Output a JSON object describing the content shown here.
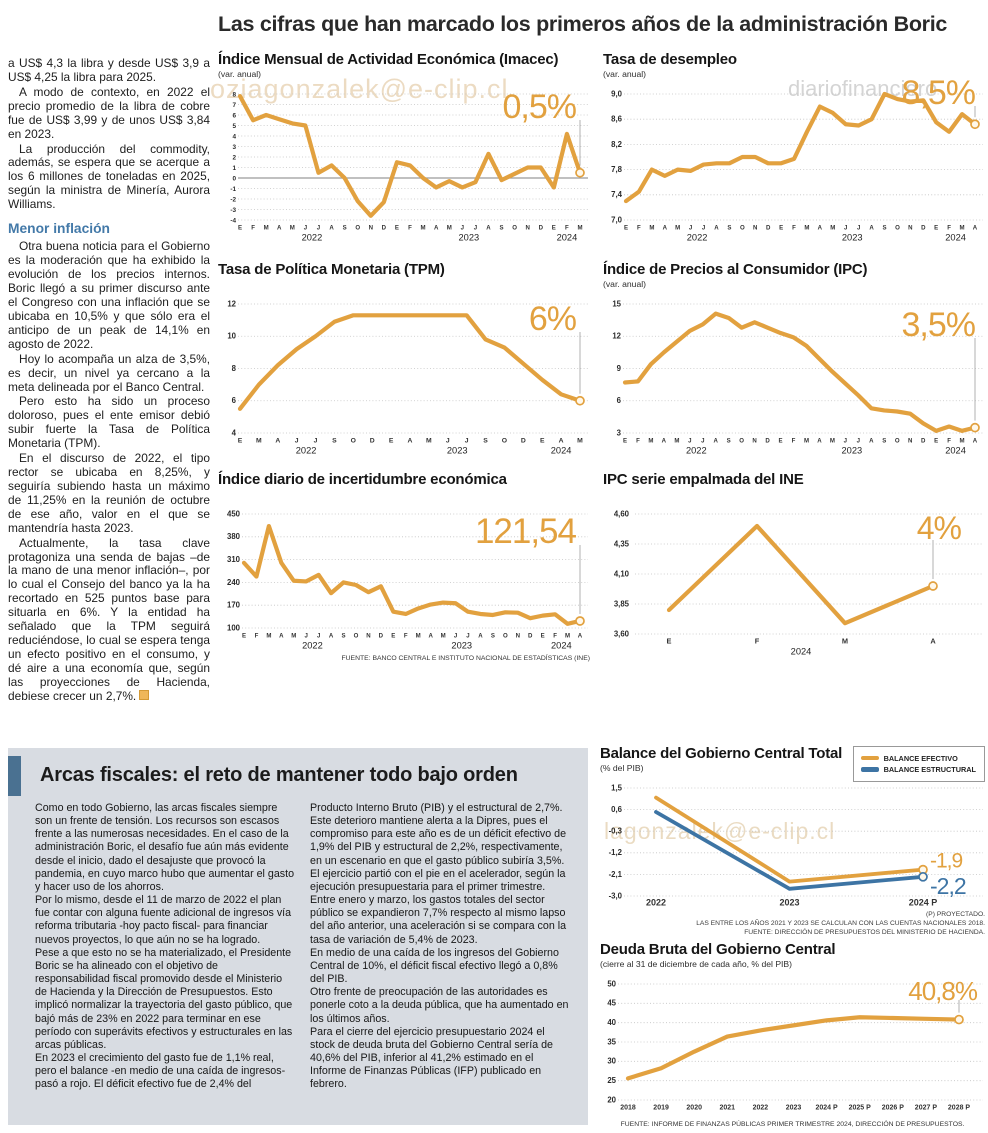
{
  "page": {
    "main_title": "Las cifras que han marcado los primeros años de la administración Boric"
  },
  "watermarks": [
    "oziagonzalek@e-clip.cl",
    "diariofinanciero",
    "ero#agonzalek@e-clip.cl",
    "lagonzalek@e-clip.cl"
  ],
  "colors": {
    "orange": "#E2A13F",
    "blue": "#3D74A4",
    "grid": "#C4C4C4",
    "zero_line": "#9A9A9A",
    "connector": "#AAAAAA",
    "subhead_blue": "#4379A8",
    "fiscal_bg": "#D8DCE2",
    "accent_bar": "#4A7191"
  },
  "left_article": {
    "paragraphs": [
      "a US$ 4,3 la libra y desde US$ 3,9 a US$ 4,25 la libra para 2025.",
      "A modo de contexto, en 2022 el precio promedio de la libra de cobre fue de US$ 3,99 y de unos US$ 3,84 en 2023.",
      "La producción del commodity, además, se espera que se acerque a los 6 millones de toneladas en 2025, según la ministra de Minería, Aurora Williams."
    ],
    "subhead": "Menor inflación",
    "paragraphs2": [
      "Otra buena noticia para el Gobierno es la moderación que ha exhibido la evolución de los precios internos. Boric llegó a su primer discurso ante el Congreso con una inflación que se ubicaba en 10,5% y que sólo era el anticipo de un peak de 14,1% en agosto de 2022.",
      "Hoy lo acompaña un alza de 3,5%, es decir, un nivel ya cercano a la meta delineada por el Banco Central.",
      "Pero esto ha sido un proceso doloroso, pues el ente emisor debió subir fuerte la Tasa de Política Monetaria (TPM).",
      "En el discurso de 2022, el tipo rector se ubicaba en 8,25%, y seguiría subiendo hasta un máximo de 11,25% en la reunión de octubre de ese año, valor en el que se mantendría hasta 2023.",
      "Actualmente, la tasa clave protagoniza una senda de bajas –de la mano de una menor inflación–, por lo cual el Consejo del banco ya la ha recortado en 525 puntos base para situarla en 6%. Y la entidad ha señalado que la TPM seguirá reduciéndose, lo cual se espera tenga un efecto positivo en el consumo, y dé aire a una economía que, según las proyecciones de Hacienda, debiese crecer un 2,7%."
    ]
  },
  "fiscal": {
    "title": "Arcas fiscales: el reto de mantener todo bajo orden",
    "col1": [
      "Como en todo Gobierno, las arcas fiscales siempre son un frente de tensión. Los recursos son escasos frente a las numerosas necesidades. En el caso de la administración Boric, el desafío fue aún más evidente desde el inicio, dado el desajuste que provocó la pandemia, en cuyo marco hubo que aumentar el gasto y hacer uso de los ahorros.",
      "Por lo mismo, desde el 11 de marzo de 2022 el plan fue contar con alguna fuente adicional de ingresos vía reforma tributaria -hoy pacto fiscal- para financiar nuevos proyectos, lo que aún no se ha logrado.",
      "Pese a que esto no se ha materializado, el Presidente Boric se ha alineado con el objetivo de responsabilidad fiscal promovido desde el Ministerio de Hacienda y la Dirección de Presupuestos. Esto implicó normalizar la trayectoria del gasto público, que bajó más de 23% en 2022 para terminar en ese período con superávits efectivos y estructurales en las arcas públicas.",
      "En 2023 el crecimiento del gasto fue de 1,1% real, pero el balance -en medio de una caída de ingresos- pasó a rojo. El déficit efectivo fue de 2,4% del"
    ],
    "col2": [
      "Producto Interno Bruto (PIB) y el estructural de 2,7%. Este deterioro mantiene alerta a la Dipres, pues el compromiso para este año es de un déficit efectivo de 1,9% del PIB y estructural de 2,2%, respectivamente, en un escenario en que el gasto público subiría 3,5%.",
      "El ejercicio partió con el pie en el acelerador, según la ejecución presupuestaria para el primer trimestre. Entre enero y marzo, los gastos totales del sector público se expandieron 7,7% respecto al mismo lapso del año anterior, una aceleración si se compara con la tasa de variación de 5,4% de 2023.",
      "En medio de una caída de los ingresos del Gobierno Central de 10%, el déficit fiscal efectivo llegó a 0,8% del PIB.",
      "Otro frente de preocupación de las autoridades es ponerle coto a la deuda pública, que ha aumentado en los últimos años.",
      "Para el cierre del ejercicio presupuestario 2024 el stock de deuda bruta del Gobierno Central sería de 40,6% del PIB, inferior al 41,2% estimado en el Informe de Finanzas Públicas (IFP) publicado en febrero."
    ]
  },
  "chart_data": [
    {
      "id": "imacec",
      "type": "line",
      "title": "Índice Mensual de Actividad Económica (Imacec)",
      "subtitle": "(var. anual)",
      "big_value": "0,5%",
      "ymin": -4,
      "ymax": 8,
      "zero_line": true,
      "yticks": [
        {
          "v": 8,
          "l": "8"
        },
        {
          "v": 7,
          "l": "7"
        },
        {
          "v": 6,
          "l": "6"
        },
        {
          "v": 5,
          "l": "5"
        },
        {
          "v": 4,
          "l": "4"
        },
        {
          "v": 3,
          "l": "3"
        },
        {
          "v": 2,
          "l": "2"
        },
        {
          "v": 1,
          "l": "1"
        },
        {
          "v": 0,
          "l": "0"
        },
        {
          "v": -1,
          "l": "-1"
        },
        {
          "v": -2,
          "l": "-2"
        },
        {
          "v": -3,
          "l": "-3"
        },
        {
          "v": -4,
          "l": "-4"
        }
      ],
      "x_labels": [
        "E",
        "F",
        "M",
        "A",
        "M",
        "J",
        "J",
        "A",
        "S",
        "O",
        "N",
        "D",
        "E",
        "F",
        "M",
        "A",
        "M",
        "J",
        "J",
        "A",
        "S",
        "O",
        "N",
        "D",
        "E",
        "F",
        "M"
      ],
      "year_groups": [
        {
          "label": "2022",
          "start": 0,
          "end": 11
        },
        {
          "label": "2023",
          "start": 12,
          "end": 23
        },
        {
          "label": "2024",
          "start": 24,
          "end": 26
        }
      ],
      "series": [
        {
          "name": "Imacec var. anual",
          "color": "orange",
          "values": [
            7.8,
            5.5,
            6.0,
            5.6,
            5.2,
            5.0,
            0.5,
            1.2,
            0.0,
            -2.2,
            -3.6,
            -2.3,
            1.5,
            1.2,
            0.0,
            -0.9,
            -0.3,
            -0.9,
            -0.4,
            2.3,
            -0.2,
            0.4,
            1.0,
            1.0,
            -0.9,
            4.2,
            0.5
          ]
        }
      ]
    },
    {
      "id": "desempleo",
      "type": "line",
      "title": "Tasa de desempleo",
      "subtitle": "(var. anual)",
      "big_value": "8,5%",
      "ymin": 7.0,
      "ymax": 9.0,
      "yticks": [
        {
          "v": 9.0,
          "l": "9,0"
        },
        {
          "v": 8.6,
          "l": "8,6"
        },
        {
          "v": 8.2,
          "l": "8,2"
        },
        {
          "v": 7.8,
          "l": "7,8"
        },
        {
          "v": 7.4,
          "l": "7,4"
        },
        {
          "v": 7.0,
          "l": "7,0"
        }
      ],
      "x_labels": [
        "E",
        "F",
        "M",
        "A",
        "M",
        "J",
        "J",
        "A",
        "S",
        "O",
        "N",
        "D",
        "E",
        "F",
        "M",
        "A",
        "M",
        "J",
        "J",
        "A",
        "S",
        "O",
        "N",
        "D",
        "E",
        "F",
        "M",
        "A"
      ],
      "year_groups": [
        {
          "label": "2022",
          "start": 0,
          "end": 11
        },
        {
          "label": "2023",
          "start": 12,
          "end": 23
        },
        {
          "label": "2024",
          "start": 24,
          "end": 27
        }
      ],
      "series": [
        {
          "name": "Tasa de desempleo",
          "color": "orange",
          "values": [
            7.3,
            7.45,
            7.8,
            7.7,
            7.8,
            7.78,
            7.88,
            7.9,
            7.9,
            8.0,
            8.0,
            7.9,
            7.9,
            7.97,
            8.4,
            8.8,
            8.7,
            8.52,
            8.5,
            8.6,
            9.0,
            8.92,
            8.88,
            8.9,
            8.55,
            8.4,
            8.68,
            8.52
          ]
        }
      ]
    },
    {
      "id": "tpm",
      "type": "line",
      "title": "Tasa de Política Monetaria (TPM)",
      "big_value": "6%",
      "ymin": 4,
      "ymax": 12,
      "yticks": [
        {
          "v": 12,
          "l": "12"
        },
        {
          "v": 10,
          "l": "10"
        },
        {
          "v": 8,
          "l": "8"
        },
        {
          "v": 6,
          "l": "6"
        },
        {
          "v": 4,
          "l": "4"
        }
      ],
      "x_labels": [
        "E",
        "M",
        "A",
        "J",
        "J",
        "S",
        "O",
        "D",
        "E",
        "A",
        "M",
        "J",
        "J",
        "S",
        "O",
        "D",
        "E",
        "A",
        "M"
      ],
      "year_groups": [
        {
          "label": "2022",
          "start": 0,
          "end": 7
        },
        {
          "label": "2023",
          "start": 8,
          "end": 15
        },
        {
          "label": "2024",
          "start": 16,
          "end": 18
        }
      ],
      "series": [
        {
          "name": "TPM",
          "color": "orange",
          "values": [
            5.5,
            7.0,
            8.2,
            9.2,
            10.0,
            10.9,
            11.3,
            11.3,
            11.3,
            11.3,
            11.3,
            11.3,
            11.3,
            9.8,
            9.3,
            8.3,
            7.3,
            6.4,
            6.0
          ]
        }
      ]
    },
    {
      "id": "ipc",
      "type": "line",
      "title": "Índice de Precios al Consumidor (IPC)",
      "subtitle": "(var. anual)",
      "big_value": "3,5%",
      "ymin": 3,
      "ymax": 15,
      "yticks": [
        {
          "v": 15,
          "l": "15"
        },
        {
          "v": 12,
          "l": "12"
        },
        {
          "v": 9,
          "l": "9"
        },
        {
          "v": 6,
          "l": "6"
        },
        {
          "v": 3,
          "l": "3"
        }
      ],
      "x_labels": [
        "E",
        "F",
        "M",
        "A",
        "M",
        "J",
        "J",
        "A",
        "S",
        "O",
        "N",
        "D",
        "E",
        "F",
        "M",
        "A",
        "M",
        "J",
        "J",
        "A",
        "S",
        "O",
        "N",
        "D",
        "E",
        "F",
        "M",
        "A"
      ],
      "year_groups": [
        {
          "label": "2022",
          "start": 0,
          "end": 11
        },
        {
          "label": "2023",
          "start": 12,
          "end": 23
        },
        {
          "label": "2024",
          "start": 24,
          "end": 27
        }
      ],
      "series": [
        {
          "name": "IPC var. anual",
          "color": "orange",
          "values": [
            7.7,
            7.8,
            9.4,
            10.5,
            11.5,
            12.5,
            13.1,
            14.1,
            13.7,
            12.8,
            13.3,
            12.8,
            12.3,
            11.9,
            11.1,
            9.9,
            8.7,
            7.6,
            6.5,
            5.3,
            5.1,
            5.0,
            4.8,
            3.9,
            3.2,
            3.6,
            3.2,
            3.5
          ]
        }
      ]
    },
    {
      "id": "incertidumbre",
      "type": "line",
      "title": "Índice diario de incertidumbre económica",
      "big_value": "121,54",
      "source": "FUENTE: BANCO CENTRAL E INSTITUTO NACIONAL DE ESTADÍSTICAS (INE)",
      "ymin": 100,
      "ymax": 450,
      "yticks": [
        {
          "v": 450,
          "l": "450"
        },
        {
          "v": 380,
          "l": "380"
        },
        {
          "v": 310,
          "l": "310"
        },
        {
          "v": 240,
          "l": "240"
        },
        {
          "v": 170,
          "l": "170"
        },
        {
          "v": 100,
          "l": "100"
        }
      ],
      "x_labels": [
        "E",
        "F",
        "M",
        "A",
        "M",
        "J",
        "J",
        "A",
        "S",
        "O",
        "N",
        "D",
        "E",
        "F",
        "M",
        "A",
        "M",
        "J",
        "J",
        "A",
        "S",
        "O",
        "N",
        "D",
        "E",
        "F",
        "M",
        "A"
      ],
      "year_groups": [
        {
          "label": "2022",
          "start": 0,
          "end": 11
        },
        {
          "label": "2023",
          "start": 12,
          "end": 23
        },
        {
          "label": "2024",
          "start": 24,
          "end": 27
        }
      ],
      "series": [
        {
          "name": "Incertidumbre económica",
          "color": "orange",
          "values": [
            300,
            258,
            413,
            300,
            245,
            243,
            263,
            207,
            240,
            232,
            210,
            228,
            150,
            143,
            160,
            172,
            178,
            176,
            150,
            143,
            140,
            148,
            147,
            130,
            138,
            142,
            113,
            121.54
          ]
        }
      ]
    },
    {
      "id": "ipc_ine",
      "type": "line",
      "title": "IPC serie empalmada del INE",
      "big_value": "4%",
      "ymin": 3.6,
      "ymax": 4.6,
      "yticks": [
        {
          "v": 4.6,
          "l": "4,60"
        },
        {
          "v": 4.35,
          "l": "4,35"
        },
        {
          "v": 4.1,
          "l": "4,10"
        },
        {
          "v": 3.85,
          "l": "3,85"
        },
        {
          "v": 3.6,
          "l": "3,60"
        }
      ],
      "x_labels": [
        "E",
        "F",
        "M",
        "A"
      ],
      "year_groups": [
        {
          "label": "2024",
          "start": 0,
          "end": 3
        }
      ],
      "series": [
        {
          "name": "IPC serie empalmada",
          "color": "orange",
          "values": [
            3.8,
            4.5,
            3.69,
            4.0
          ]
        }
      ]
    },
    {
      "id": "balance",
      "type": "line",
      "title": "Balance del Gobierno Central Total",
      "subtitle": "(% del PIB)",
      "legend": [
        {
          "label": "BALANCE EFECTIVO",
          "color": "orange"
        },
        {
          "label": "BALANCE ESTRUCTURAL",
          "color": "blue"
        }
      ],
      "ymin": -3.0,
      "ymax": 1.5,
      "yticks": [
        {
          "v": 1.5,
          "l": "1,5"
        },
        {
          "v": 0.6,
          "l": "0,6"
        },
        {
          "v": -0.3,
          "l": "-0,3"
        },
        {
          "v": -1.2,
          "l": "-1,2"
        },
        {
          "v": -2.1,
          "l": "-2,1"
        },
        {
          "v": -3.0,
          "l": "-3,0"
        }
      ],
      "x_labels": [
        "2022",
        "2023",
        "2024 P"
      ],
      "series": [
        {
          "name": "BALANCE EFECTIVO",
          "color": "orange",
          "values": [
            1.1,
            -2.4,
            -1.9
          ],
          "end_label": "-1,9"
        },
        {
          "name": "BALANCE ESTRUCTURAL",
          "color": "blue",
          "values": [
            0.5,
            -2.7,
            -2.2
          ],
          "end_label": "-2,2"
        }
      ],
      "notes": [
        "(P) PROYECTADO.",
        "LAS ENTRE LOS AÑOS 2021 Y 2023 SE CALCULAN  CON LAS CUENTAS NACIONALES 2018.",
        "FUENTE: DIRECCIÓN DE PRESUPUESTOS DEL MINISTERIO DE HACIENDA."
      ]
    },
    {
      "id": "deuda",
      "type": "line",
      "title": "Deuda Bruta del Gobierno Central",
      "subtitle": "(cierre al 31 de diciembre de cada año, % del PIB)",
      "big_value": "40,8%",
      "source": "FUENTE: INFORME DE FINANZAS PÚBLICAS PRIMER TRIMESTRE 2024, DIRECCIÓN DE PRESUPUESTOS.",
      "ymin": 20,
      "ymax": 50,
      "yticks": [
        {
          "v": 50,
          "l": "50"
        },
        {
          "v": 45,
          "l": "45"
        },
        {
          "v": 40,
          "l": "40"
        },
        {
          "v": 35,
          "l": "35"
        },
        {
          "v": 30,
          "l": "30"
        },
        {
          "v": 25,
          "l": "25"
        },
        {
          "v": 20,
          "l": "20"
        }
      ],
      "x_labels": [
        "2018",
        "2019",
        "2020",
        "2021",
        "2022",
        "2023",
        "2024 P",
        "2025 P",
        "2026 P",
        "2027 P",
        "2028 P"
      ],
      "series": [
        {
          "name": "Deuda bruta % del PIB",
          "color": "orange",
          "values": [
            25.6,
            28.2,
            32.5,
            36.4,
            38.0,
            39.3,
            40.6,
            41.4,
            41.2,
            41.0,
            40.8
          ]
        }
      ]
    }
  ]
}
